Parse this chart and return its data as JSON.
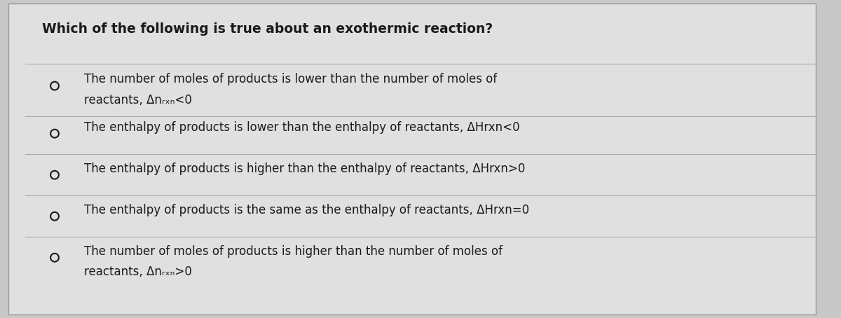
{
  "title": "Which of the following is true about an exothermic reaction?",
  "options": [
    {
      "line1": "The number of moles of products is lower than the number of moles of",
      "line2": "reactants, Δnᵣₓₙ<0"
    },
    {
      "line1": "The enthalpy of products is lower than the enthalpy of reactants, ΔHrxn<0",
      "line2": null
    },
    {
      "line1": "The enthalpy of products is higher than the enthalpy of reactants, ΔHrxn>0",
      "line2": null
    },
    {
      "line1": "The enthalpy of products is the same as the enthalpy of reactants, ΔHrxn=0",
      "line2": null
    },
    {
      "line1": "The number of moles of products is higher than the number of moles of",
      "line2": "reactants, Δnᵣₓₙ>0"
    }
  ],
  "bg_color": "#c8c8c8",
  "card_color": "#e0e0e0",
  "text_color": "#1a1a1a",
  "title_fontsize": 13.5,
  "option_fontsize": 12.0,
  "divider_color": "#aaaaaa"
}
